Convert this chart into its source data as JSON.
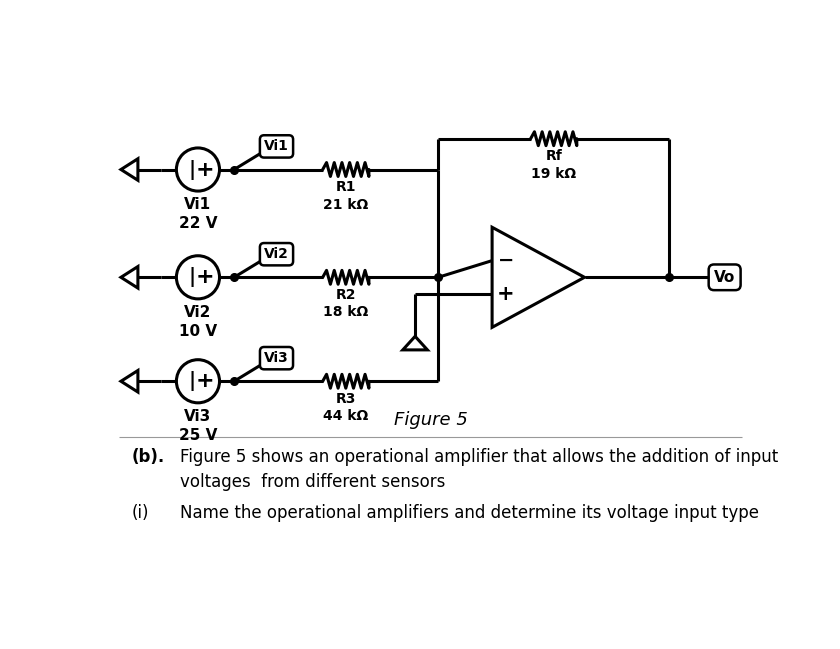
{
  "background_color": "#ffffff",
  "figure_title": "Figure 5",
  "sources": [
    {
      "label": "Vi1\n22 V",
      "tag": "Vi1"
    },
    {
      "label": "Vi2\n10 V",
      "tag": "Vi2"
    },
    {
      "label": "Vi3\n25 V",
      "tag": "Vi3"
    }
  ],
  "resistors": [
    {
      "label": "R1\n21 kΩ"
    },
    {
      "label": "R2\n18 kΩ"
    },
    {
      "label": "R3\n44 kΩ"
    }
  ],
  "rf_label": "Rf\n19 kΩ",
  "vo_label": "Vo",
  "line_color": "#000000",
  "lw": 2.2,
  "caption_b_label": "(b).",
  "caption_b_text": "Figure 5 shows an operational amplifier that allows the addition of input\nvoltages  from different sensors",
  "caption_i_label": "(i)",
  "caption_i_text": "Name the operational amplifiers and determine its voltage input type"
}
